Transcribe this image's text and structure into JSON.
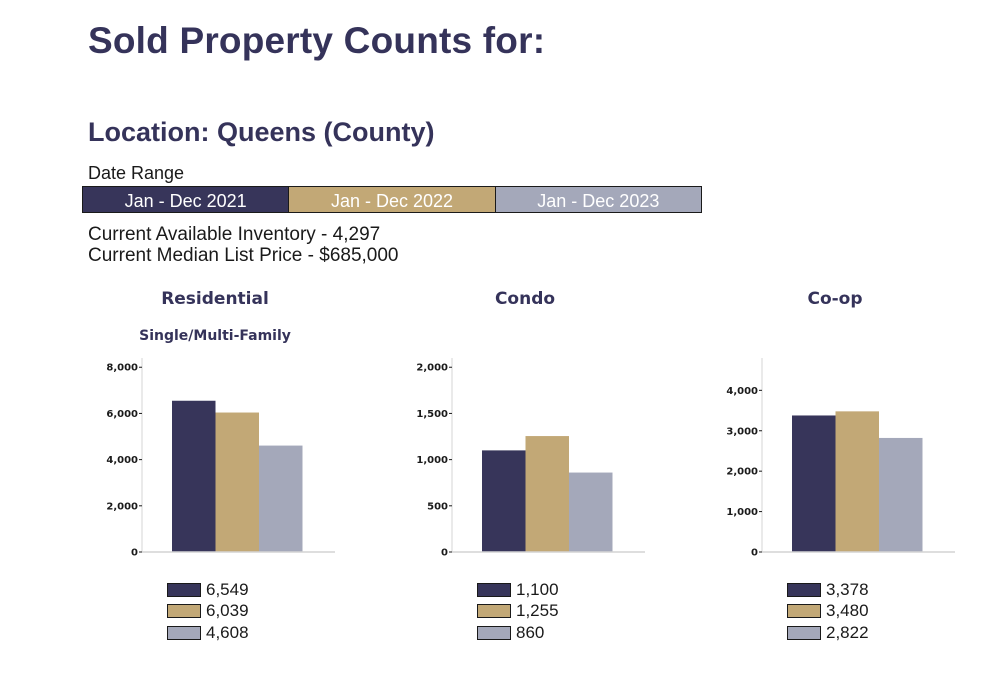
{
  "header": {
    "title": "Sold Property Counts for:",
    "location": "Location: Queens (County)",
    "date_range_label": "Date Range"
  },
  "date_ranges": [
    {
      "label": "Jan - Dec 2021",
      "color": "#37355a"
    },
    {
      "label": "Jan - Dec 2022",
      "color": "#c2a876"
    },
    {
      "label": "Jan - Dec 2023",
      "color": "#a4a8ba"
    }
  ],
  "inventory": {
    "available": "Current Available Inventory - 4,297",
    "median_price": "Current Median List Price - $685,000"
  },
  "chart_data": [
    {
      "type": "bar",
      "title": "Residential",
      "subtitle": "Single/Multi-Family",
      "categories": [
        "Jan - Dec 2021",
        "Jan - Dec 2022",
        "Jan - Dec 2023"
      ],
      "values": [
        6549,
        6039,
        4608
      ],
      "value_labels": [
        "6,549",
        "6,039",
        "4,608"
      ],
      "yticks": [
        0,
        2000,
        4000,
        6000,
        8000
      ],
      "ytick_labels": [
        "0",
        "2,000",
        "4,000",
        "6,000",
        "8,000"
      ],
      "ylim": [
        0,
        8400
      ],
      "colors": [
        "#37355a",
        "#c2a876",
        "#a4a8ba"
      ],
      "xlabel": "",
      "ylabel": "",
      "grid": false,
      "legend": "bottom"
    },
    {
      "type": "bar",
      "title": "Condo",
      "subtitle": "",
      "categories": [
        "Jan - Dec 2021",
        "Jan - Dec 2022",
        "Jan - Dec 2023"
      ],
      "values": [
        1100,
        1255,
        860
      ],
      "value_labels": [
        "1,100",
        "1,255",
        "860"
      ],
      "yticks": [
        0,
        500,
        1000,
        1500,
        2000
      ],
      "ytick_labels": [
        "0",
        "500",
        "1,000",
        "1,500",
        "2,000"
      ],
      "ylim": [
        0,
        2100
      ],
      "colors": [
        "#37355a",
        "#c2a876",
        "#a4a8ba"
      ],
      "xlabel": "",
      "ylabel": "",
      "grid": false,
      "legend": "bottom"
    },
    {
      "type": "bar",
      "title": "Co-op",
      "subtitle": "",
      "categories": [
        "Jan - Dec 2021",
        "Jan - Dec 2022",
        "Jan - Dec 2023"
      ],
      "values": [
        3378,
        3480,
        2822
      ],
      "value_labels": [
        "3,378",
        "3,480",
        "2,822"
      ],
      "yticks": [
        0,
        1000,
        2000,
        3000,
        4000
      ],
      "ytick_labels": [
        "0",
        "1,000",
        "2,000",
        "3,000",
        "4,000"
      ],
      "ylim": [
        0,
        4800
      ],
      "colors": [
        "#37355a",
        "#c2a876",
        "#a4a8ba"
      ],
      "xlabel": "",
      "ylabel": "",
      "grid": false,
      "legend": "bottom"
    }
  ]
}
